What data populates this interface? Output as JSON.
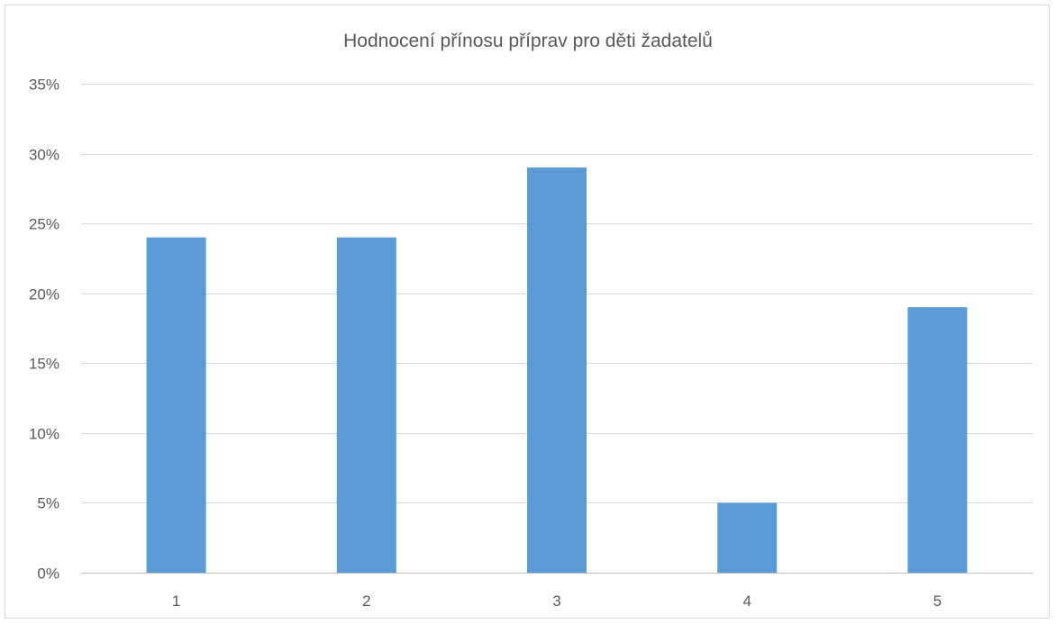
{
  "chart_data": {
    "type": "bar",
    "title": "Hodnocení přínosu příprav pro děti žadatelů",
    "xlabel": "",
    "ylabel": "",
    "categories": [
      "1",
      "2",
      "3",
      "4",
      "5"
    ],
    "values": [
      24,
      24,
      29,
      5,
      19
    ],
    "value_unit": "%",
    "ylim": [
      0,
      35
    ],
    "yticks": [
      0,
      5,
      10,
      15,
      20,
      25,
      30,
      35
    ],
    "ytick_labels": [
      "0%",
      "5%",
      "10%",
      "15%",
      "20%",
      "25%",
      "30%",
      "35%"
    ],
    "grid": true,
    "legend": "none",
    "bar_color": "#5b9bd5"
  }
}
